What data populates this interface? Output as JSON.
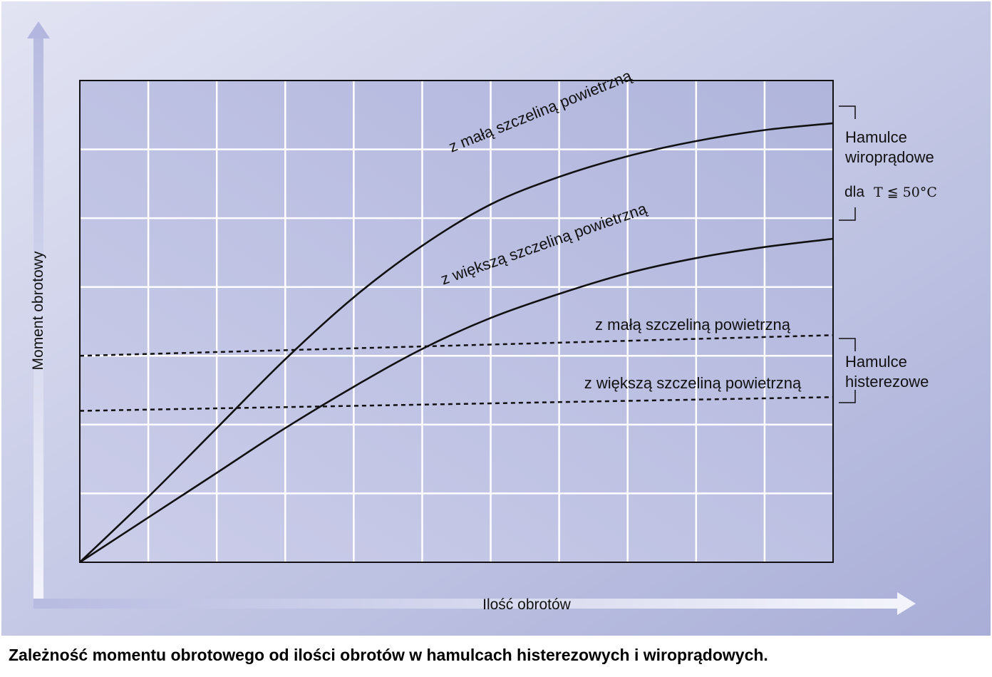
{
  "caption": "Zależność momentu obrotowego od ilości obrotów w hamulcach histerezowych i wiroprądowych.",
  "chart_data": {
    "type": "line",
    "title": "",
    "xlabel": "Ilość obrotów",
    "ylabel": "Moment obrotowy",
    "xlim": [
      0,
      11
    ],
    "ylim": [
      0,
      7
    ],
    "x_divisions": 11,
    "y_divisions": 7,
    "grid": true,
    "legend": "none",
    "series": [
      {
        "name": "z małą szczeliną powietrzną",
        "group": "eddy",
        "style": "solid",
        "x": [
          0,
          1,
          2,
          3,
          4,
          5,
          6,
          7,
          8,
          9,
          10,
          11
        ],
        "y": [
          0,
          0.95,
          1.95,
          2.95,
          3.85,
          4.6,
          5.2,
          5.6,
          5.9,
          6.12,
          6.28,
          6.38
        ]
      },
      {
        "name": "z większą szczeliną powietrzną",
        "group": "eddy",
        "style": "solid",
        "x": [
          0,
          1,
          2,
          3,
          4,
          5,
          6,
          7,
          8,
          9,
          10,
          11
        ],
        "y": [
          0,
          0.65,
          1.3,
          1.95,
          2.55,
          3.1,
          3.55,
          3.9,
          4.2,
          4.42,
          4.58,
          4.7
        ]
      },
      {
        "name": "z małą szczeliną powietrzną",
        "group": "hysteresis",
        "style": "dashed",
        "x": [
          0,
          11
        ],
        "y": [
          3.0,
          3.3
        ]
      },
      {
        "name": "z większą szczeliną powietrzną",
        "group": "hysteresis",
        "style": "dashed",
        "x": [
          0,
          11
        ],
        "y": [
          2.2,
          2.4
        ]
      }
    ],
    "annotations": {
      "eddy_group": [
        "Hamulce",
        "wiroprądowe"
      ],
      "eddy_condition_prefix": "dla",
      "eddy_condition": "T ≦ 50°C",
      "hysteresis_group": [
        "Hamulce",
        "histerezowe"
      ]
    }
  },
  "colors": {
    "background_light": "#e2e4f3",
    "background_dark": "#a9aed8",
    "plot_light": "#cbcde9",
    "plot_dark": "#b0b5dc",
    "grid": "#ffffff",
    "curve": "#111111",
    "axis_arrow": "#f3f4fb"
  }
}
